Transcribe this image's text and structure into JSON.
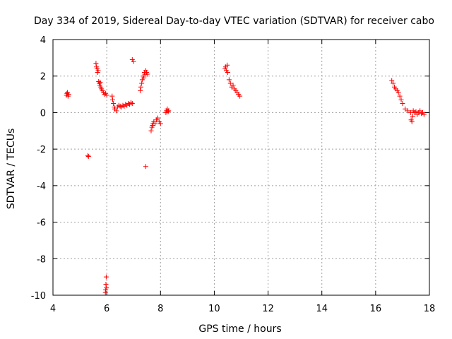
{
  "chart_data": {
    "type": "scatter",
    "title": "Day 334 of 2019, Sidereal Day-to-day VTEC variation (SDTVAR) for receiver cabo",
    "xlabel": "GPS time / hours",
    "ylabel": "SDTVAR / TECUs",
    "xlim": [
      4,
      18
    ],
    "ylim": [
      -10,
      4
    ],
    "xticks": [
      4,
      6,
      8,
      10,
      12,
      14,
      16,
      18
    ],
    "yticks": [
      -10,
      -8,
      -6,
      -4,
      -2,
      0,
      2,
      4
    ],
    "xtick_labels": [
      "4",
      "6",
      "8",
      "10",
      "12",
      "14",
      "16",
      "18"
    ],
    "ytick_labels": [
      "-10",
      "-8",
      "-6",
      "-4",
      "-2",
      "0",
      "2",
      "4"
    ],
    "grid": true,
    "marker": "+",
    "series": [
      {
        "name": "SDTVAR",
        "color": "#ff0000",
        "points": [
          [
            4.5,
            0.95
          ],
          [
            4.52,
            1.05
          ],
          [
            4.54,
            1.1
          ],
          [
            4.56,
            0.9
          ],
          [
            4.58,
            1.0
          ],
          [
            5.3,
            -2.35
          ],
          [
            5.32,
            -2.4
          ],
          [
            5.6,
            2.7
          ],
          [
            5.62,
            2.5
          ],
          [
            5.64,
            2.4
          ],
          [
            5.66,
            2.2
          ],
          [
            5.68,
            2.3
          ],
          [
            5.7,
            1.7
          ],
          [
            5.72,
            1.6
          ],
          [
            5.74,
            1.5
          ],
          [
            5.76,
            1.65
          ],
          [
            5.78,
            1.4
          ],
          [
            5.8,
            1.3
          ],
          [
            5.84,
            1.2
          ],
          [
            5.88,
            1.1
          ],
          [
            5.92,
            1.0
          ],
          [
            5.96,
            1.05
          ],
          [
            6.0,
            0.95
          ],
          [
            5.98,
            -9.0
          ],
          [
            5.97,
            -9.4
          ],
          [
            5.96,
            -9.7
          ],
          [
            5.95,
            -9.85
          ],
          [
            5.99,
            -9.6
          ],
          [
            6.2,
            0.9
          ],
          [
            6.22,
            0.7
          ],
          [
            6.25,
            0.5
          ],
          [
            6.28,
            0.3
          ],
          [
            6.3,
            0.2
          ],
          [
            6.35,
            0.1
          ],
          [
            6.4,
            0.3
          ],
          [
            6.45,
            0.4
          ],
          [
            6.5,
            0.35
          ],
          [
            6.55,
            0.3
          ],
          [
            6.6,
            0.4
          ],
          [
            6.65,
            0.35
          ],
          [
            6.7,
            0.45
          ],
          [
            6.75,
            0.4
          ],
          [
            6.8,
            0.5
          ],
          [
            6.85,
            0.45
          ],
          [
            6.9,
            0.55
          ],
          [
            6.95,
            0.5
          ],
          [
            6.95,
            2.9
          ],
          [
            7.0,
            2.8
          ],
          [
            7.25,
            1.2
          ],
          [
            7.27,
            1.4
          ],
          [
            7.3,
            1.6
          ],
          [
            7.32,
            1.8
          ],
          [
            7.35,
            2.0
          ],
          [
            7.38,
            1.9
          ],
          [
            7.4,
            2.2
          ],
          [
            7.42,
            2.1
          ],
          [
            7.45,
            2.3
          ],
          [
            7.48,
            2.2
          ],
          [
            7.5,
            2.1
          ],
          [
            7.45,
            -2.95
          ],
          [
            7.65,
            -1.0
          ],
          [
            7.68,
            -0.8
          ],
          [
            7.7,
            -0.7
          ],
          [
            7.72,
            -0.6
          ],
          [
            7.75,
            -0.5
          ],
          [
            7.8,
            -0.6
          ],
          [
            7.85,
            -0.4
          ],
          [
            7.9,
            -0.3
          ],
          [
            7.95,
            -0.5
          ],
          [
            8.0,
            -0.6
          ],
          [
            8.2,
            0.0
          ],
          [
            8.22,
            0.1
          ],
          [
            8.25,
            0.2
          ],
          [
            8.28,
            0.05
          ],
          [
            8.3,
            0.1
          ],
          [
            10.4,
            2.4
          ],
          [
            10.42,
            2.5
          ],
          [
            10.45,
            2.3
          ],
          [
            10.48,
            2.6
          ],
          [
            10.5,
            2.2
          ],
          [
            10.55,
            1.8
          ],
          [
            10.6,
            1.6
          ],
          [
            10.65,
            1.4
          ],
          [
            10.7,
            1.5
          ],
          [
            10.75,
            1.3
          ],
          [
            10.8,
            1.2
          ],
          [
            10.85,
            1.1
          ],
          [
            10.9,
            1.0
          ],
          [
            10.95,
            0.9
          ],
          [
            16.6,
            1.75
          ],
          [
            16.65,
            1.6
          ],
          [
            16.7,
            1.4
          ],
          [
            16.75,
            1.3
          ],
          [
            16.8,
            1.2
          ],
          [
            16.85,
            1.1
          ],
          [
            16.9,
            0.9
          ],
          [
            16.95,
            0.7
          ],
          [
            17.0,
            0.5
          ],
          [
            17.1,
            0.2
          ],
          [
            17.2,
            0.1
          ],
          [
            17.3,
            0.0
          ],
          [
            17.32,
            -0.4
          ],
          [
            17.35,
            -0.5
          ],
          [
            17.38,
            -0.2
          ],
          [
            17.4,
            0.1
          ],
          [
            17.45,
            0.0
          ],
          [
            17.5,
            0.05
          ],
          [
            17.55,
            -0.1
          ],
          [
            17.6,
            0.0
          ],
          [
            17.65,
            0.1
          ],
          [
            17.7,
            -0.05
          ],
          [
            17.75,
            0.0
          ],
          [
            17.8,
            -0.1
          ]
        ]
      }
    ]
  }
}
